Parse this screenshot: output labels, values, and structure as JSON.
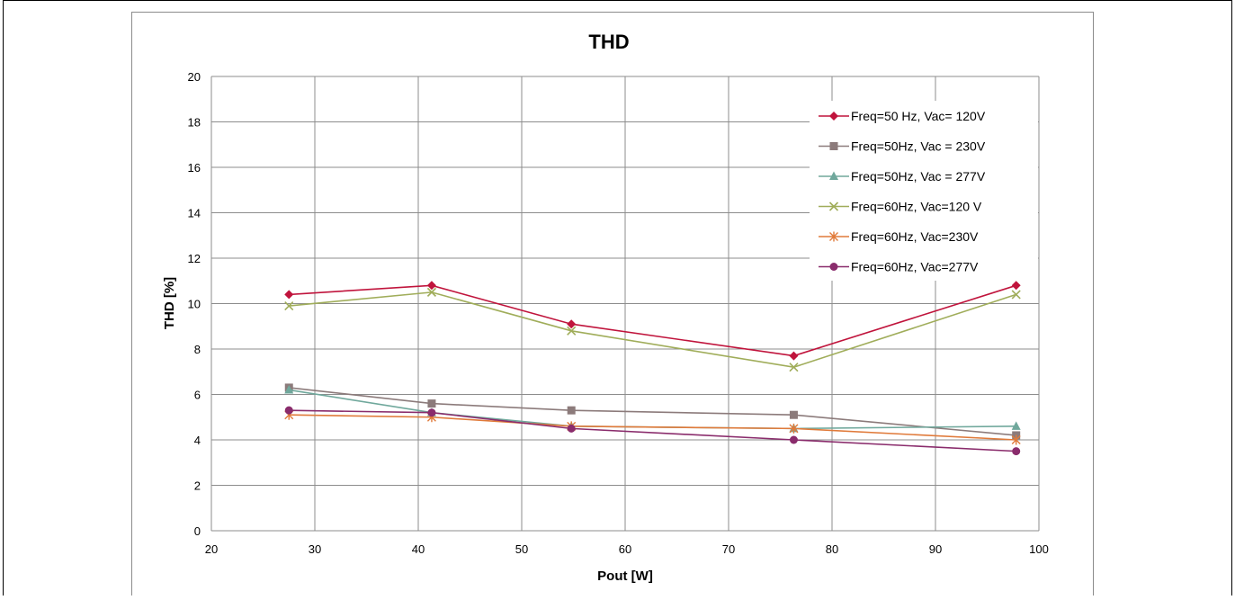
{
  "chart_data": {
    "type": "line",
    "title": "THD",
    "xlabel": "Pout [W]",
    "ylabel": "THD [%]",
    "xlim": [
      20,
      100
    ],
    "ylim": [
      0,
      20
    ],
    "xticks": [
      20,
      30,
      40,
      50,
      60,
      70,
      80,
      90,
      100
    ],
    "yticks": [
      0,
      2,
      4,
      6,
      8,
      10,
      12,
      14,
      16,
      18,
      20
    ],
    "grid": true,
    "legend_position": "top-right",
    "series": [
      {
        "name": "Freq=50 Hz, Vac= 120V",
        "color": "#c0143c",
        "marker": "diamond",
        "x": [
          27.5,
          41.3,
          54.8,
          76.3,
          97.8
        ],
        "y": [
          10.4,
          10.8,
          9.1,
          7.7,
          10.8
        ]
      },
      {
        "name": "Freq=50Hz, Vac = 230V",
        "color": "#8c7b7b",
        "marker": "square",
        "x": [
          27.5,
          41.3,
          54.8,
          76.3,
          97.8
        ],
        "y": [
          6.3,
          5.6,
          5.3,
          5.1,
          4.2
        ]
      },
      {
        "name": "Freq=50Hz, Vac = 277V",
        "color": "#70a89c",
        "marker": "triangle",
        "x": [
          27.5,
          41.3,
          54.8,
          76.3,
          97.8
        ],
        "y": [
          6.2,
          5.2,
          4.6,
          4.5,
          4.6
        ]
      },
      {
        "name": "Freq=60Hz, Vac=120 V",
        "color": "#a0ad5a",
        "marker": "x",
        "x": [
          27.5,
          41.3,
          54.8,
          76.3,
          97.8
        ],
        "y": [
          9.9,
          10.5,
          8.8,
          7.2,
          10.4
        ]
      },
      {
        "name": "Freq=60Hz, Vac=230V",
        "color": "#e07a3a",
        "marker": "star",
        "x": [
          27.5,
          41.3,
          54.8,
          76.3,
          97.8
        ],
        "y": [
          5.1,
          5.0,
          4.6,
          4.5,
          4.0
        ]
      },
      {
        "name": "Freq=60Hz, Vac=277V",
        "color": "#8a2c6c",
        "marker": "circle",
        "x": [
          27.5,
          41.3,
          54.8,
          76.3,
          97.8
        ],
        "y": [
          5.3,
          5.2,
          4.5,
          4.0,
          3.5
        ]
      }
    ]
  }
}
